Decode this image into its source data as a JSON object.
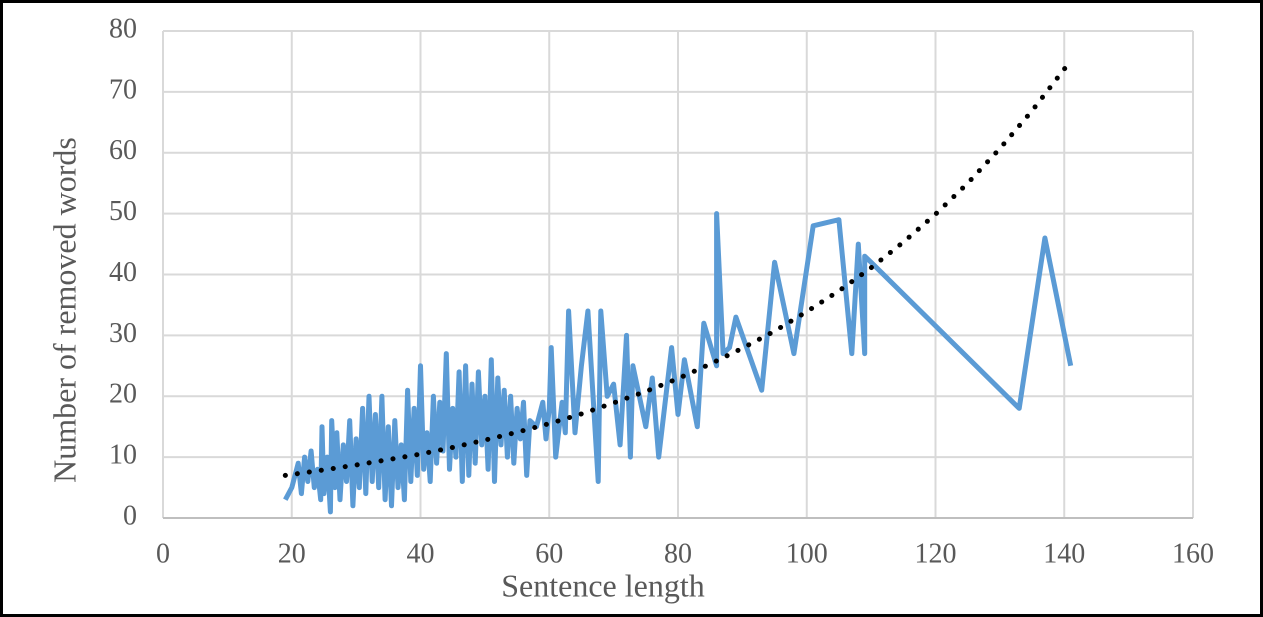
{
  "chart_data": {
    "type": "line",
    "x_label": "Sentence length",
    "y_label": "Number of removed words",
    "xlim": [
      0,
      160
    ],
    "xticks": [
      0,
      20,
      40,
      60,
      80,
      100,
      120,
      140,
      160
    ],
    "ylim": [
      0,
      80
    ],
    "yticks": [
      0,
      10,
      20,
      30,
      40,
      50,
      60,
      70,
      80
    ],
    "grid": true,
    "series": [
      {
        "color": "#5b9bd5",
        "style": "solid",
        "x": [
          19,
          20,
          21,
          21.5,
          22,
          22.5,
          23,
          23.5,
          24,
          24.5,
          24.7,
          25,
          25.5,
          26,
          26.2,
          26.7,
          27,
          27.5,
          28,
          28.5,
          29,
          29.5,
          30,
          30.5,
          31,
          31.5,
          32,
          32.5,
          33,
          33.5,
          34,
          34.5,
          35,
          35.5,
          36,
          36.5,
          37,
          37.5,
          38,
          38.5,
          39,
          39.5,
          40,
          40.5,
          41,
          41.5,
          42,
          42.5,
          43,
          43.5,
          44,
          44.5,
          45,
          45.5,
          46,
          46.5,
          47,
          47.5,
          48,
          48.5,
          49,
          49.5,
          50,
          50.5,
          51,
          51.5,
          52,
          52.5,
          53,
          53.5,
          54,
          54.5,
          55,
          55.5,
          56,
          56.5,
          57,
          58,
          59,
          59.5,
          60,
          60.3,
          61,
          62,
          62.5,
          63,
          64,
          65,
          66,
          67.6,
          68,
          69,
          70,
          71,
          72,
          72.6,
          73,
          75,
          76,
          77,
          79,
          80,
          81,
          83,
          84,
          86,
          86,
          87,
          88,
          89,
          93,
          95,
          98,
          101,
          105,
          107,
          108,
          109,
          109,
          110,
          133,
          137,
          141
        ],
        "values": [
          3,
          5,
          9,
          4,
          10,
          6,
          11,
          5,
          8,
          3,
          15,
          4,
          10,
          1,
          16,
          5,
          14,
          3,
          12,
          6,
          16,
          2,
          13,
          5,
          18,
          4,
          20,
          6,
          17,
          5,
          20,
          3,
          15,
          2,
          16,
          5,
          12,
          3,
          21,
          6,
          18,
          7,
          25,
          8,
          14,
          6,
          20,
          9,
          19,
          11,
          27,
          8,
          18,
          10,
          24,
          6,
          25,
          7,
          22,
          9,
          24,
          12,
          20,
          8,
          26,
          6,
          23,
          12,
          21,
          10,
          20,
          9,
          18,
          13,
          19,
          7,
          16,
          15,
          19,
          13,
          18,
          28,
          10,
          19,
          14,
          34,
          14,
          25,
          34,
          6,
          34,
          20,
          22,
          12,
          30,
          10,
          25,
          15,
          23,
          10,
          28,
          17,
          26,
          15,
          32,
          25,
          50,
          27,
          28,
          33,
          21,
          42,
          27,
          48,
          49,
          27,
          45,
          27,
          43,
          42,
          18,
          46,
          25
        ]
      },
      {
        "color": "#000000",
        "style": "dotted",
        "x": [
          19,
          25,
          30,
          35,
          40,
          45,
          50,
          55,
          60,
          65,
          70,
          75,
          80,
          85,
          90,
          95,
          100,
          105,
          110,
          115,
          120,
          125,
          130,
          135,
          141
        ],
        "values": [
          7.0,
          7.9,
          8.7,
          9.6,
          10.5,
          11.6,
          12.8,
          14.1,
          15.5,
          17.1,
          18.9,
          20.8,
          22.9,
          25.3,
          27.9,
          30.7,
          33.9,
          37.3,
          41.1,
          45.3,
          49.9,
          55.0,
          60.7,
          66.9,
          75.1
        ]
      }
    ]
  }
}
